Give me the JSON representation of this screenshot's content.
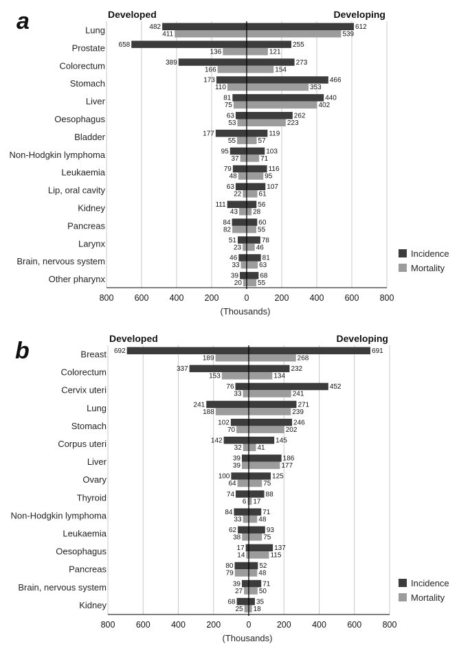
{
  "chart_data": [
    {
      "type": "bar",
      "panel": "a",
      "left_label": "Developed",
      "right_label": "Developing",
      "xlabel": "(Thousands)",
      "xlim": [
        -800,
        800
      ],
      "tick_labels": [
        "800",
        "600",
        "400",
        "200",
        "0",
        "200",
        "400",
        "600",
        "800"
      ],
      "legend": [
        "Incidence",
        "Mortality"
      ],
      "categories": [
        "Lung",
        "Prostate",
        "Colorectum",
        "Stomach",
        "Liver",
        "Oesophagus",
        "Bladder",
        "Non-Hodgkin lymphoma",
        "Leukaemia",
        "Lip, oral cavity",
        "Kidney",
        "Pancreas",
        "Larynx",
        "Brain, nervous system",
        "Other pharynx"
      ],
      "series": [
        {
          "name": "Developed Incidence",
          "values": [
            482,
            658,
            389,
            173,
            81,
            63,
            177,
            95,
            79,
            63,
            111,
            84,
            51,
            46,
            39
          ]
        },
        {
          "name": "Developed Mortality",
          "values": [
            411,
            136,
            166,
            110,
            75,
            53,
            55,
            37,
            48,
            22,
            43,
            82,
            23,
            33,
            20
          ]
        },
        {
          "name": "Developing Incidence",
          "values": [
            612,
            255,
            273,
            466,
            440,
            262,
            119,
            103,
            116,
            107,
            56,
            60,
            78,
            81,
            68
          ]
        },
        {
          "name": "Developing Mortality",
          "values": [
            539,
            121,
            154,
            353,
            402,
            223,
            57,
            71,
            95,
            61,
            28,
            55,
            46,
            63,
            55
          ]
        }
      ]
    },
    {
      "type": "bar",
      "panel": "b",
      "left_label": "Developed",
      "right_label": "Developing",
      "xlabel": "(Thousands)",
      "xlim": [
        -800,
        800
      ],
      "tick_labels": [
        "800",
        "600",
        "400",
        "200",
        "0",
        "200",
        "400",
        "600",
        "800"
      ],
      "legend": [
        "Incidence",
        "Mortality"
      ],
      "categories": [
        "Breast",
        "Colorectum",
        "Cervix uteri",
        "Lung",
        "Stomach",
        "Corpus uteri",
        "Liver",
        "Ovary",
        "Thyroid",
        "Non-Hodgkin lymphoma",
        "Leukaemia",
        "Oesophagus",
        "Pancreas",
        "Brain, nervous system",
        "Kidney"
      ],
      "series": [
        {
          "name": "Developed Incidence",
          "values": [
            692,
            337,
            76,
            241,
            102,
            142,
            39,
            100,
            74,
            84,
            62,
            17,
            80,
            39,
            68
          ]
        },
        {
          "name": "Developed Mortality",
          "values": [
            189,
            153,
            33,
            188,
            70,
            32,
            39,
            64,
            6,
            33,
            38,
            14,
            79,
            27,
            25
          ]
        },
        {
          "name": "Developing Incidence",
          "values": [
            691,
            232,
            452,
            271,
            246,
            145,
            186,
            125,
            88,
            71,
            93,
            137,
            52,
            71,
            35
          ]
        },
        {
          "name": "Developing Mortality",
          "values": [
            268,
            134,
            241,
            239,
            202,
            41,
            177,
            75,
            17,
            48,
            75,
            115,
            48,
            50,
            18
          ]
        }
      ]
    }
  ],
  "colors": {
    "incidence": "#3c3c3c",
    "mortality": "#9c9c9c",
    "grid": "#c8c8c8"
  }
}
